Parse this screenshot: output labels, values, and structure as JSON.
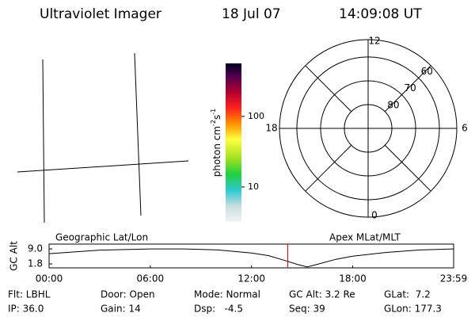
{
  "header": {
    "title": "Ultraviolet Imager",
    "date": "18 Jul 07",
    "time": "14:09:08 UT"
  },
  "colorbar": {
    "label": [
      "photon cm",
      "-2",
      "s",
      "-1"
    ],
    "scale": "log",
    "range": [
      3.2,
      565
    ],
    "ticks": [
      10,
      100
    ]
  },
  "polar": {
    "lat_lim": [
      90,
      52.7
    ],
    "lat_ticks": [
      80,
      70,
      60
    ],
    "mlt_ticks": [
      12,
      6,
      0,
      18
    ]
  },
  "orbit": {
    "left_label": "Geographic Lat/Lon",
    "right_label": "Apex MLat/MLT",
    "y_label": "GC Alt",
    "xlim": [
      0,
      23.983
    ],
    "ylim": [
      -0.1,
      11.3
    ],
    "xticks": [
      {
        "value": 0,
        "label": "00:00"
      },
      {
        "value": 6,
        "label": "06:00"
      },
      {
        "value": 12,
        "label": "12:00"
      },
      {
        "value": 18,
        "label": "18:00"
      },
      {
        "value": 23.983,
        "label": "23:59"
      }
    ],
    "yticks": [
      {
        "value": 9.0,
        "label": "9.0"
      },
      {
        "value": 1.8,
        "label": "1.8"
      }
    ],
    "x": [
      0,
      3,
      6,
      8,
      10,
      12,
      13,
      14,
      14.7,
      15.3,
      16,
      17,
      18,
      20,
      22,
      23.983
    ],
    "values": [
      6.7,
      8.4,
      9.0,
      9.0,
      8.5,
      7.0,
      5.8,
      3.4,
      1.6,
      0.3,
      1.8,
      4.0,
      5.5,
      7.3,
      8.5,
      9.0
    ],
    "marker_time": 14.152,
    "marker_color": "#e00000"
  },
  "footer": {
    "rows": [
      [
        "Flt: LBHL",
        "Door: Open",
        "Mode: Normal",
        "GC Alt: 3.2 Re",
        "GLat:  7.2"
      ],
      [
        "IP: 36.0",
        "Gain: 14",
        "Dsp:   -4.5",
        "Seq: 39",
        "GLon: 177.3"
      ]
    ]
  }
}
